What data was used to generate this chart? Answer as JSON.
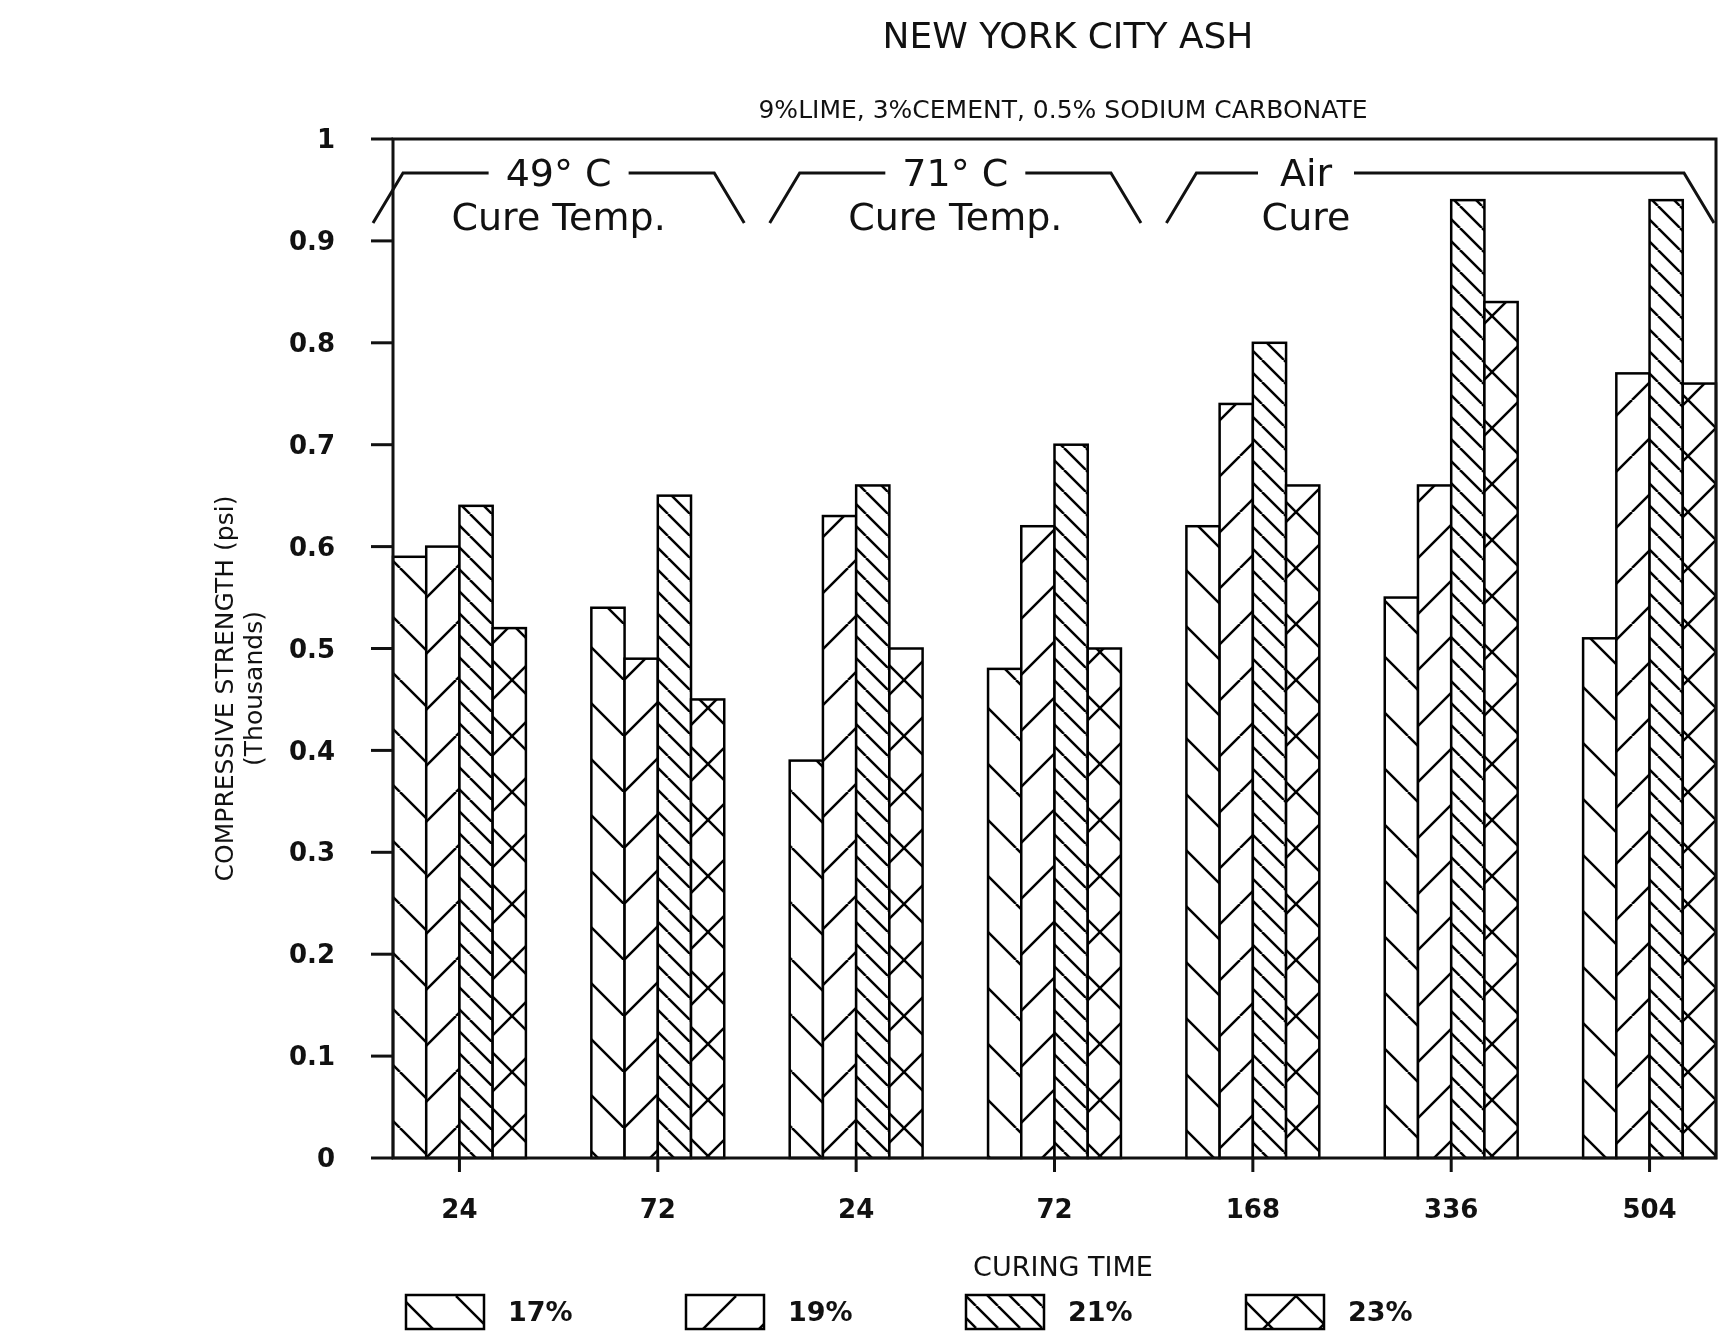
{
  "chart_data": {
    "type": "bar",
    "title": "NEW YORK CITY ASH",
    "subtitle": "9%LIME, 3%CEMENT, 0.5% SODIUM CARBONATE",
    "xlabel": "CURING TIME",
    "ylabel": "COMPRESSIVE STRENGTH (psi)\n(Thousands)",
    "categories": [
      "24",
      "72",
      "24",
      "72",
      "168",
      "336",
      "504"
    ],
    "series": [
      {
        "name": "17%",
        "color": "#000000",
        "values": [
          0.59,
          0.54,
          0.39,
          0.48,
          0.62,
          0.55,
          0.51
        ]
      },
      {
        "name": "19%",
        "color": "#000000",
        "values": [
          0.6,
          0.49,
          0.63,
          0.62,
          0.74,
          0.66,
          0.77
        ]
      },
      {
        "name": "21%",
        "color": "#000000",
        "values": [
          0.64,
          0.65,
          0.66,
          0.7,
          0.8,
          0.94,
          0.94
        ]
      },
      {
        "name": "23%",
        "color": "#000000",
        "values": [
          0.52,
          0.45,
          0.5,
          0.5,
          0.66,
          0.84,
          0.76
        ]
      }
    ],
    "ylim": [
      0,
      1
    ],
    "yticks": [
      0,
      0.1,
      0.2,
      0.3,
      0.4,
      0.5,
      0.6,
      0.7,
      0.8,
      0.9,
      1
    ],
    "grid": false,
    "legend": "bottom",
    "annotations": [
      "49° C\nCure Temp.",
      "71° C\nCure Temp.",
      "Air\nCure"
    ]
  }
}
